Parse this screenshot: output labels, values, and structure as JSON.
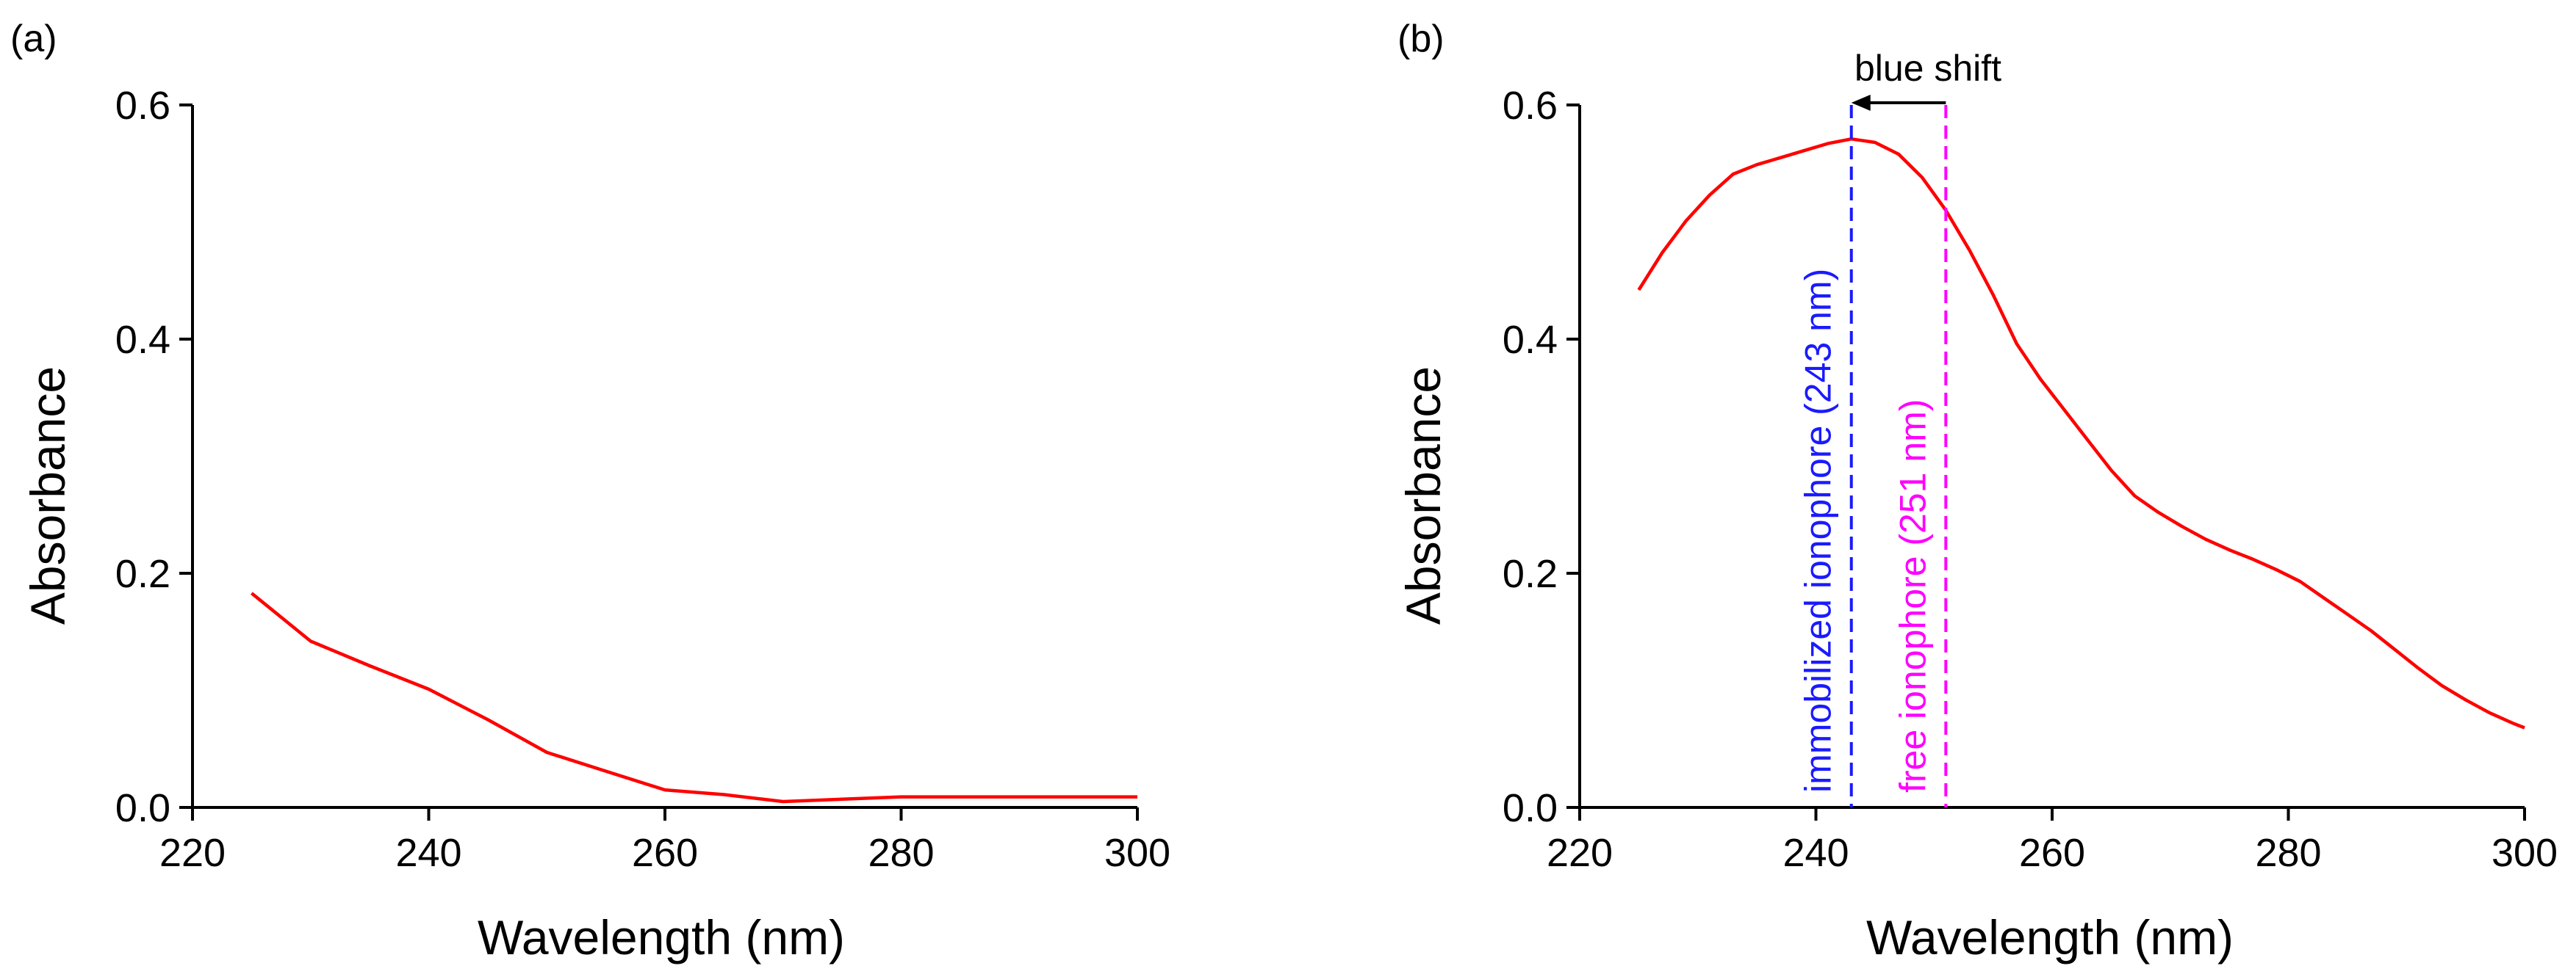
{
  "chart_data": [
    {
      "panel": "(a)",
      "type": "line",
      "xlabel": "Wavelength (nm)",
      "ylabel": "Absorbance",
      "xlim": [
        220,
        300
      ],
      "ylim": [
        0,
        0.6
      ],
      "xticks": [
        "220",
        "240",
        "260",
        "280",
        "300"
      ],
      "yticks": [
        "0.0",
        "0.2",
        "0.4",
        "0.6"
      ],
      "series": [
        {
          "color": "#ff0000",
          "x": [
            225,
            230,
            235,
            240,
            245,
            250,
            255,
            260,
            265,
            270,
            275,
            280,
            285,
            290,
            295,
            300
          ],
          "y": [
            0.183,
            0.142,
            0.121,
            0.101,
            0.075,
            0.047,
            0.031,
            0.015,
            0.011,
            0.005,
            0.007,
            0.009,
            0.009,
            0.009,
            0.009,
            0.009
          ]
        }
      ]
    },
    {
      "panel": "(b)",
      "type": "line",
      "xlabel": "Wavelength (nm)",
      "ylabel": "Absorbance",
      "xlim": [
        220,
        300
      ],
      "ylim": [
        0,
        0.6
      ],
      "xticks": [
        "220",
        "240",
        "260",
        "280",
        "300"
      ],
      "yticks": [
        "0.0",
        "0.2",
        "0.4",
        "0.6"
      ],
      "series": [
        {
          "color": "#ff0000",
          "x": [
            225,
            227,
            229,
            231,
            233,
            235,
            237,
            239,
            241,
            243,
            245,
            247,
            249,
            251,
            253,
            255,
            257,
            259,
            261,
            263,
            265,
            267,
            269,
            271,
            273,
            275,
            277,
            279,
            281,
            283,
            285,
            287,
            289,
            291,
            293,
            295,
            297,
            299,
            300
          ],
          "y": [
            0.442,
            0.474,
            0.501,
            0.523,
            0.541,
            0.549,
            0.555,
            0.561,
            0.567,
            0.571,
            0.568,
            0.558,
            0.538,
            0.51,
            0.476,
            0.438,
            0.396,
            0.366,
            0.34,
            0.314,
            0.288,
            0.266,
            0.252,
            0.24,
            0.229,
            0.22,
            0.212,
            0.203,
            0.193,
            0.179,
            0.165,
            0.151,
            0.135,
            0.119,
            0.104,
            0.092,
            0.081,
            0.072,
            0.068
          ]
        }
      ],
      "annotations": {
        "immobilized": {
          "x": 243,
          "label": "immobilized ionophore (243 nm)",
          "color": "#1a1aff"
        },
        "free": {
          "x": 251,
          "label": "free ionophore (251 nm)",
          "color": "#ff00ff"
        },
        "shift_label": "blue shift",
        "shift_color": "#000000"
      }
    }
  ]
}
